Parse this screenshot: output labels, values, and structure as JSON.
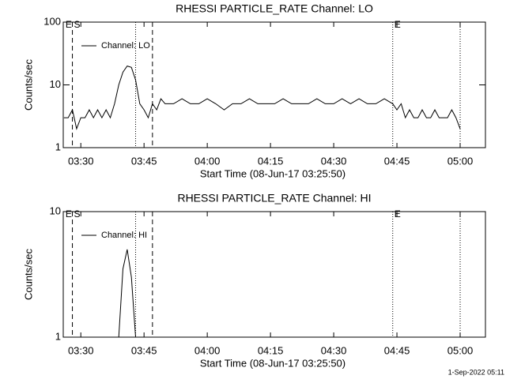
{
  "chart_data": [
    {
      "type": "line",
      "title": "RHESSI PARTICLE_RATE Channel: LO",
      "xlabel": "Start Time (08-Jun-17 03:25:50)",
      "ylabel": "Counts/sec",
      "x": [
        "03:26",
        "03:27",
        "03:28",
        "03:29",
        "03:30",
        "03:31",
        "03:32",
        "03:33",
        "03:34",
        "03:35",
        "03:36",
        "03:37",
        "03:38",
        "03:39",
        "03:40",
        "03:41",
        "03:42",
        "03:43",
        "03:44",
        "03:45",
        "03:46",
        "03:47",
        "03:48",
        "03:49",
        "03:50",
        "03:52",
        "03:54",
        "03:56",
        "03:58",
        "04:00",
        "04:02",
        "04:04",
        "04:06",
        "04:08",
        "04:10",
        "04:12",
        "04:14",
        "04:16",
        "04:18",
        "04:20",
        "04:22",
        "04:24",
        "04:26",
        "04:28",
        "04:30",
        "04:32",
        "04:34",
        "04:36",
        "04:38",
        "04:40",
        "04:42",
        "04:44",
        "04:45",
        "04:46",
        "04:47",
        "04:48",
        "04:49",
        "04:50",
        "04:51",
        "04:52",
        "04:53",
        "04:54",
        "04:55",
        "04:56",
        "04:57",
        "04:58",
        "04:59",
        "05:00"
      ],
      "series": [
        {
          "name": "Channel: LO",
          "color": "#000000",
          "values": [
            3,
            3,
            4,
            2,
            3,
            3,
            4,
            3,
            4,
            3,
            4,
            3,
            5,
            10,
            16,
            20,
            19,
            12,
            5,
            4,
            3,
            5,
            4,
            6,
            5,
            5,
            6,
            5,
            5,
            6,
            5,
            4,
            5,
            5,
            6,
            5,
            5,
            5,
            6,
            5,
            5,
            5,
            6,
            5,
            5,
            6,
            5,
            6,
            5,
            5,
            6,
            5,
            4,
            5,
            3,
            4,
            3,
            3,
            4,
            3,
            3,
            4,
            3,
            3,
            3,
            4,
            3,
            2
          ]
        }
      ],
      "xlim": [
        "03:25:50",
        "05:06"
      ],
      "xticks": [
        "03:30",
        "03:45",
        "04:00",
        "04:15",
        "04:30",
        "04:45",
        "05:00"
      ],
      "ylim": [
        1,
        100
      ],
      "yticks": [
        1,
        10,
        100
      ],
      "log_y": true,
      "markers": [
        {
          "x": "03:28",
          "style": "dashed"
        },
        {
          "x": "03:43",
          "style": "dotted"
        },
        {
          "x": "03:47",
          "style": "dashed"
        },
        {
          "x": "04:44",
          "style": "dotted"
        },
        {
          "x": "05:00",
          "style": "dotted"
        }
      ],
      "annotations": [
        {
          "x": "03:26",
          "text": "E"
        },
        {
          "x": "03:28",
          "text": "S"
        },
        {
          "x": "04:44",
          "text": "E"
        }
      ]
    },
    {
      "type": "line",
      "title": "RHESSI PARTICLE_RATE Channel: HI",
      "xlabel": "Start Time (08-Jun-17 03:25:50)",
      "ylabel": "Counts/sec",
      "x": [
        "03:39",
        "03:40",
        "03:41",
        "03:42",
        "03:43"
      ],
      "series": [
        {
          "name": "Channel: HI",
          "color": "#000000",
          "values": [
            1,
            3.5,
            5,
            3,
            1
          ]
        }
      ],
      "xlim": [
        "03:25:50",
        "05:06"
      ],
      "xticks": [
        "03:30",
        "03:45",
        "04:00",
        "04:15",
        "04:30",
        "04:45",
        "05:00"
      ],
      "ylim": [
        1,
        10
      ],
      "yticks": [
        1,
        10
      ],
      "log_y": true,
      "markers": [
        {
          "x": "03:28",
          "style": "dashed"
        },
        {
          "x": "03:43",
          "style": "dotted"
        },
        {
          "x": "03:47",
          "style": "dashed"
        },
        {
          "x": "04:44",
          "style": "dotted"
        },
        {
          "x": "05:00",
          "style": "dotted"
        }
      ],
      "annotations": [
        {
          "x": "03:26",
          "text": "E"
        },
        {
          "x": "03:28",
          "text": "S"
        },
        {
          "x": "04:44",
          "text": "E"
        }
      ]
    }
  ],
  "footer": "1-Sep-2022 05:11"
}
